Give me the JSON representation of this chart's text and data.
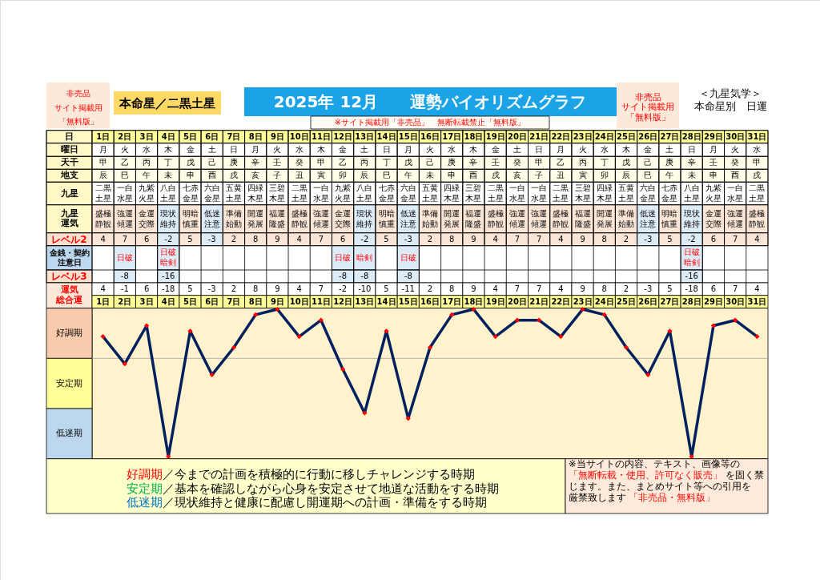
{
  "chart_data": [
    {
      "type": "heatmap",
      "title": "2025年 12月　　運勢バイオリズムグラフ",
      "subtitle": "本命星／二黒土星",
      "annotations": [
        "非売品サイト掲載用「無料版」",
        "※サイト掲載用「非売品」　無断転載禁止「無料版」",
        "非売品サイト掲載用「無料版」",
        "＜九星気学＞本命星別　日運"
      ],
      "xlabel": "日",
      "categories": [
        "1日",
        "2日",
        "3日",
        "4日",
        "5日",
        "6日",
        "7日",
        "8日",
        "9日",
        "10日",
        "11日",
        "12日",
        "13日",
        "14日",
        "15日",
        "16日",
        "17日",
        "18日",
        "19日",
        "20日",
        "21日",
        "22日",
        "23日",
        "24日",
        "25日",
        "26日",
        "27日",
        "28日",
        "29日",
        "30日",
        "31日"
      ],
      "y_categories": [
        "曜日",
        "天干",
        "地支",
        "九星",
        "九星運気",
        "レベル2",
        "金銭・契約注意日",
        "レベル3"
      ],
      "cells": [
        [
          null,
          null,
          null,
          null,
          null,
          null,
          null,
          null,
          null,
          null,
          null,
          null,
          null,
          null,
          null,
          null,
          null,
          null,
          null,
          null,
          null,
          null,
          null,
          null,
          null,
          null,
          null,
          null,
          null,
          null,
          null
        ],
        [
          null,
          null,
          null,
          null,
          null,
          null,
          null,
          null,
          null,
          null,
          null,
          null,
          null,
          null,
          null,
          null,
          null,
          null,
          null,
          null,
          null,
          null,
          null,
          null,
          null,
          null,
          null,
          null,
          null,
          null,
          null
        ],
        [
          null,
          null,
          null,
          null,
          null,
          null,
          null,
          null,
          null,
          null,
          null,
          null,
          null,
          null,
          null,
          null,
          null,
          null,
          null,
          null,
          null,
          null,
          null,
          null,
          null,
          null,
          null,
          null,
          null,
          null,
          null
        ],
        [
          null,
          null,
          null,
          null,
          null,
          null,
          null,
          null,
          null,
          null,
          null,
          null,
          null,
          null,
          null,
          null,
          null,
          null,
          null,
          null,
          null,
          null,
          null,
          null,
          null,
          null,
          null,
          null,
          null,
          null,
          null
        ],
        [
          null,
          null,
          null,
          null,
          null,
          null,
          null,
          null,
          null,
          null,
          null,
          null,
          null,
          null,
          null,
          null,
          null,
          null,
          null,
          null,
          null,
          null,
          null,
          null,
          null,
          null,
          null,
          null,
          null,
          null,
          null
        ],
        [
          null,
          null,
          null,
          null,
          null,
          null,
          null,
          null,
          null,
          null,
          null,
          null,
          null,
          null,
          null,
          null,
          null,
          null,
          null,
          null,
          null,
          null,
          null,
          null,
          null,
          null,
          null,
          null,
          null,
          null,
          null
        ],
        [
          null,
          null,
          null,
          null,
          null,
          null,
          null,
          null,
          null,
          null,
          null,
          null,
          null,
          null,
          null,
          null,
          null,
          null,
          null,
          null,
          null,
          null,
          null,
          null,
          null,
          null,
          null,
          null,
          null,
          null,
          null
        ],
        [
          null,
          null,
          null,
          null,
          null,
          null,
          null,
          null,
          null,
          null,
          null,
          null,
          null,
          null,
          null,
          null,
          null,
          null,
          null,
          null,
          null,
          null,
          null,
          null,
          null,
          null,
          null,
          null,
          null,
          null,
          null
        ]
      ],
      "cell_labels": [
        [
          "月",
          "火",
          "水",
          "木",
          "金",
          "土",
          "日",
          "月",
          "火",
          "水",
          "木",
          "金",
          "土",
          "日",
          "月",
          "火",
          "水",
          "木",
          "金",
          "土",
          "日",
          "月",
          "火",
          "水",
          "木",
          "金",
          "土",
          "日",
          "月",
          "火",
          "水"
        ],
        [
          "甲",
          "乙",
          "丙",
          "丁",
          "戊",
          "己",
          "庚",
          "辛",
          "壬",
          "癸",
          "甲",
          "乙",
          "丙",
          "丁",
          "戊",
          "己",
          "庚",
          "辛",
          "壬",
          "癸",
          "甲",
          "乙",
          "丙",
          "丁",
          "戊",
          "己",
          "庚",
          "辛",
          "壬",
          "癸",
          "甲"
        ],
        [
          "辰",
          "巳",
          "午",
          "未",
          "申",
          "酉",
          "戌",
          "亥",
          "子",
          "丑",
          "寅",
          "卯",
          "辰",
          "巳",
          "午",
          "未",
          "申",
          "酉",
          "戌",
          "亥",
          "子",
          "丑",
          "寅",
          "卯",
          "辰",
          "巳",
          "午",
          "未",
          "申",
          "酉",
          "戌"
        ],
        [
          "二黒土星",
          "一白水星",
          "九紫火星",
          "八白土星",
          "七赤金星",
          "六白金星",
          "五黄土星",
          "四緑木星",
          "三碧木星",
          "二黒土星",
          "一白水星",
          "九紫火星",
          "八白土星",
          "七赤金星",
          "六白金星",
          "五黄土星",
          "四緑木星",
          "三碧木星",
          "二黒土星",
          "一白水星",
          "一白水星",
          "二黒土星",
          "三碧木星",
          "四緑木星",
          "五黄土星",
          "六白金星",
          "七赤金星",
          "八白土星",
          "九紫火星",
          "一白水星",
          "二黒土星"
        ],
        [
          "盛極静観",
          "強運傾運",
          "金運交際",
          "現状維持",
          "明暗慎重",
          "低迷注意",
          "準備始動",
          "開運発展",
          "福運隆盛",
          "盛極静観",
          "強運傾運",
          "金運交際",
          "現状維持",
          "明暗慎重",
          "低迷注意",
          "準備始動",
          "開運発展",
          "福運隆盛",
          "盛極静観",
          "強運傾運",
          "強運傾運",
          "盛極静観",
          "福運隆盛",
          "開運発展",
          "準備始動",
          "低迷注意",
          "明暗慎重",
          "現状維持",
          "金運交際",
          "強運傾運",
          "盛極静観"
        ],
        [
          "4",
          "7",
          "6",
          "-2",
          "5",
          "-3",
          "2",
          "8",
          "9",
          "4",
          "7",
          "6",
          "-2",
          "5",
          "-3",
          "2",
          "8",
          "9",
          "4",
          "7",
          "7",
          "4",
          "9",
          "8",
          "2",
          "-3",
          "5",
          "-2",
          "6",
          "7",
          "4"
        ],
        [
          null,
          "日破",
          null,
          "日破暗剣",
          null,
          null,
          null,
          null,
          null,
          null,
          null,
          "日破",
          "暗剣",
          null,
          "日破",
          null,
          null,
          null,
          null,
          null,
          null,
          null,
          null,
          null,
          null,
          null,
          null,
          "日破暗剣",
          null,
          null,
          null
        ],
        [
          null,
          "-8",
          null,
          "-16",
          null,
          null,
          null,
          null,
          null,
          null,
          null,
          "-8",
          "-8",
          null,
          "-8",
          null,
          null,
          null,
          null,
          null,
          null,
          null,
          null,
          null,
          null,
          null,
          null,
          "-16",
          null,
          null,
          null
        ]
      ],
      "colors": [
        [
          null,
          null,
          null,
          null,
          null,
          null,
          null,
          null,
          null,
          null,
          null,
          null,
          null,
          null,
          null,
          null,
          null,
          null,
          null,
          null,
          null,
          null,
          null,
          null,
          null,
          null,
          null,
          null,
          null,
          null,
          null
        ],
        [
          "#fffde8",
          "#fffde8",
          "#fffde8",
          "#fffde8",
          "#fffde8",
          "#fffde8",
          "#fffde8",
          "#fffde8",
          "#fffde8",
          "#fffde8",
          "#fffde8",
          "#fffde8",
          "#fffde8",
          "#fffde8",
          "#fffde8",
          "#fffde8",
          "#fffde8",
          "#fffde8",
          "#fffde8",
          "#fffde8",
          "#fffde8",
          "#fffde8",
          "#fffde8",
          "#fffde8",
          "#fffde8",
          "#fffde8",
          "#fffde8",
          "#fffde8",
          "#fffde8",
          "#fffde8",
          "#fffde8"
        ],
        [
          "#fffde8",
          "#fffde8",
          "#fffde8",
          "#fffde8",
          "#fffde8",
          "#fffde8",
          "#fffde8",
          "#fffde8",
          "#fffde8",
          "#fffde8",
          "#fffde8",
          "#fffde8",
          "#fffde8",
          "#fffde8",
          "#fffde8",
          "#fffde8",
          "#fffde8",
          "#fffde8",
          "#fffde8",
          "#fffde8",
          "#fffde8",
          "#fffde8",
          "#fffde8",
          "#fffde8",
          "#fffde8",
          "#fffde8",
          "#fffde8",
          "#fffde8",
          "#fffde8",
          "#fffde8",
          "#fffde8"
        ],
        [
          null,
          null,
          null,
          null,
          null,
          null,
          null,
          null,
          null,
          null,
          null,
          null,
          null,
          null,
          null,
          null,
          null,
          null,
          null,
          null,
          null,
          null,
          null,
          null,
          null,
          null,
          null,
          null,
          null,
          null,
          null
        ],
        [
          "#fbe5d6",
          "#fbe5d6",
          "#fbe5d6",
          "#ddebf7",
          "#fbe5d6",
          "#ddebf7",
          "#fbe5d6",
          "#fbe5d6",
          "#fbe5d6",
          "#fbe5d6",
          "#fbe5d6",
          "#fbe5d6",
          "#ddebf7",
          "#fbe5d6",
          "#ddebf7",
          "#fbe5d6",
          "#fbe5d6",
          "#fbe5d6",
          "#fbe5d6",
          "#fbe5d6",
          "#fbe5d6",
          "#fbe5d6",
          "#fbe5d6",
          "#fbe5d6",
          "#fbe5d6",
          "#ddebf7",
          "#fbe5d6",
          "#ddebf7",
          "#fbe5d6",
          "#fbe5d6",
          "#fbe5d6"
        ],
        [
          "#fbe5d6",
          "#fbe5d6",
          "#fbe5d6",
          "#ddebf7",
          "#fbe5d6",
          "#ddebf7",
          "#fbe5d6",
          "#fbe5d6",
          "#fbe5d6",
          "#fbe5d6",
          "#fbe5d6",
          "#fbe5d6",
          "#ddebf7",
          "#fbe5d6",
          "#ddebf7",
          "#fbe5d6",
          "#fbe5d6",
          "#fbe5d6",
          "#fbe5d6",
          "#fbe5d6",
          "#fbe5d6",
          "#fbe5d6",
          "#fbe5d6",
          "#fbe5d6",
          "#fbe5d6",
          "#ddebf7",
          "#fbe5d6",
          "#ddebf7",
          "#fbe5d6",
          "#fbe5d6",
          "#fbe5d6"
        ],
        [
          null,
          "#ddebf7",
          null,
          "#ddebf7",
          null,
          null,
          null,
          null,
          null,
          null,
          null,
          "#ddebf7",
          "#ddebf7",
          null,
          "#ddebf7",
          null,
          null,
          null,
          null,
          null,
          null,
          null,
          null,
          null,
          null,
          null,
          null,
          "#ddebf7",
          null,
          null,
          null
        ],
        [
          null,
          "#ddebf7",
          null,
          "#ddebf7",
          null,
          null,
          null,
          null,
          null,
          null,
          null,
          "#ddebf7",
          "#ddebf7",
          null,
          "#ddebf7",
          null,
          null,
          null,
          null,
          null,
          null,
          null,
          null,
          null,
          null,
          null,
          null,
          "#ddebf7",
          null,
          null,
          null
        ]
      ]
    },
    {
      "type": "line",
      "categories": [
        "1日",
        "2日",
        "3日",
        "4日",
        "5日",
        "6日",
        "7日",
        "8日",
        "9日",
        "10日",
        "11日",
        "12日",
        "13日",
        "14日",
        "15日",
        "16日",
        "17日",
        "18日",
        "19日",
        "20日",
        "21日",
        "22日",
        "23日",
        "24日",
        "25日",
        "26日",
        "27日",
        "28日",
        "29日",
        "30日",
        "31日"
      ],
      "ylim": [
        -18.4,
        9.2
      ],
      "ylabel": "運気総合運",
      "tick_labels": "x",
      "series": [
        {
          "type": "line",
          "color": "#002060",
          "values": [
            4,
            -1,
            6,
            -18,
            5,
            -3,
            2,
            8,
            9,
            4,
            7,
            -2,
            -10,
            5,
            -11,
            2,
            8,
            9,
            4,
            7,
            7,
            4,
            9,
            8,
            2,
            -3,
            5,
            -18,
            6,
            7,
            4
          ],
          "value_labels": [
            "4",
            "-1",
            "6",
            "-18",
            "5",
            "-3",
            "2",
            "8",
            "9",
            "4",
            "7",
            "-2",
            "-10",
            "5",
            "-11",
            "2",
            "8",
            "9",
            "4",
            "7",
            "7",
            "4",
            "9",
            "8",
            "2",
            "-3",
            "5",
            "-18",
            "6",
            "7",
            "4"
          ]
        },
        {
          "type": "scatter",
          "color": "#ff0000",
          "marker": "diamond",
          "values": [
            4,
            -1,
            6,
            -18,
            5,
            -3,
            2,
            8,
            9,
            4,
            7,
            -2,
            -10,
            5,
            -11,
            2,
            8,
            9,
            4,
            7,
            7,
            4,
            9,
            8,
            2,
            -3,
            5,
            -18,
            6,
            7,
            4
          ]
        }
      ],
      "ref_lines": [
        {
          "axis": "y",
          "value": 0,
          "color": "#a6a6a6"
        }
      ],
      "annotations": [
        "好調期",
        "安定期",
        "低迷期",
        "好調期",
        "／今までの計画を積極的に行動に移しチャレンジする時期",
        "安定期",
        "／基本を確認しながら心身を安定させて地道な活動をする時期",
        "低迷期",
        "／現状維持と健康に配慮し開運期への計画・準備をする時期",
        "※当サイトの内容、テキスト、画像等の",
        "「無断転載・使用、許可なく販売」",
        "を固く禁",
        "じます。また、まとめサイト等への引用を",
        "厳禁致します",
        "「非売品・無料版」"
      ]
    }
  ]
}
